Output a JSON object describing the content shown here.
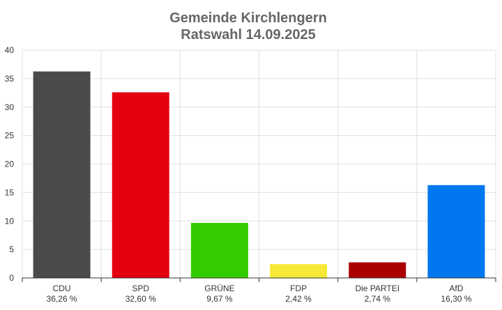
{
  "chart_data": {
    "type": "bar",
    "title": "Gemeinde Kirchlengern",
    "subtitle": "Ratswahl 14.09.2025",
    "categories": [
      "CDU",
      "SPD",
      "GRÜNE",
      "FDP",
      "Die PARTEI",
      "AfD"
    ],
    "value_labels": [
      "36,26 %",
      "32,60 %",
      "9,67 %",
      "2,42 %",
      "2,74 %",
      "16,30 %"
    ],
    "values": [
      36.26,
      32.6,
      9.67,
      2.42,
      2.74,
      16.3
    ],
    "colors": [
      "#4a4a4a",
      "#e3000f",
      "#33cc00",
      "#f7e835",
      "#aa0000",
      "#0077ee"
    ],
    "ylim": [
      0,
      40
    ],
    "yticks": [
      "0",
      "5",
      "10",
      "15",
      "20",
      "25",
      "30",
      "35",
      "40"
    ],
    "grid": true,
    "legend": "none",
    "xlabel": "",
    "ylabel": ""
  }
}
